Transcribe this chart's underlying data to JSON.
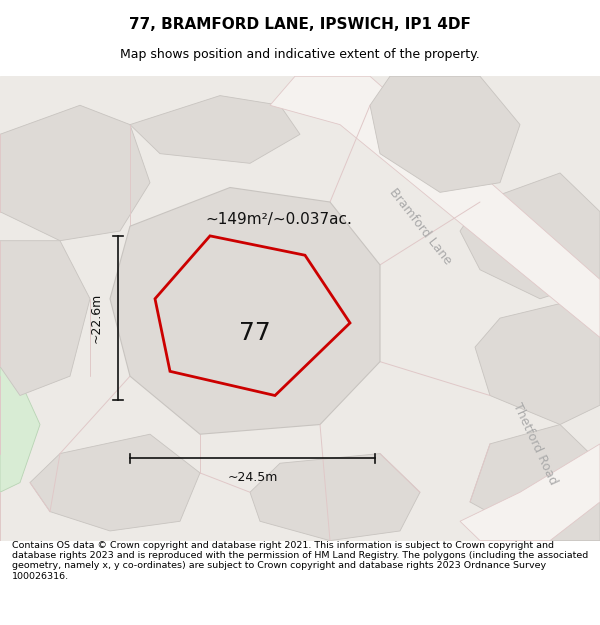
{
  "title": "77, BRAMFORD LANE, IPSWICH, IP1 4DF",
  "subtitle": "Map shows position and indicative extent of the property.",
  "footer": "Contains OS data © Crown copyright and database right 2021. This information is subject to Crown copyright and database rights 2023 and is reproduced with the permission of HM Land Registry. The polygons (including the associated geometry, namely x, y co-ordinates) are subject to Crown copyright and database rights 2023 Ordnance Survey 100026316.",
  "bg_color": "#edeae6",
  "parcel_fill": "#dedad6",
  "parcel_edge": "#c8c4c0",
  "road_fill": "#f5f2ef",
  "road_edge": "#e0c8c8",
  "green_fill": "#d8ecd4",
  "green_edge": "#b8d4b4",
  "plot_fill": "#dedad6",
  "plot_edge": "#cc0000",
  "dim_color": "#111111",
  "label_color": "#111111",
  "road_label_color": "#aaaaaa",
  "area_label": "~149m²/~0.037ac.",
  "number_label": "77",
  "dim_width": "~24.5m",
  "dim_height": "~22.6m",
  "road_label_1": "Bramford Lane",
  "road_label_2": "Thetford Road",
  "title_fontsize": 11,
  "subtitle_fontsize": 9,
  "footer_fontsize": 6.8,
  "area_fontsize": 11,
  "number_fontsize": 18,
  "dim_fontsize": 9,
  "road_fontsize": 9
}
